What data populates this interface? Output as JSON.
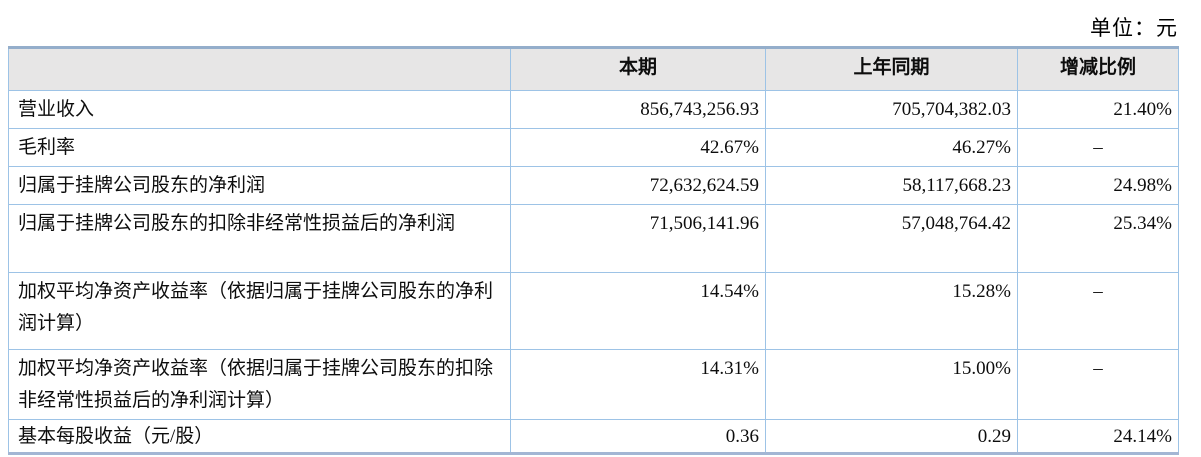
{
  "unit_label": "单位：元",
  "table": {
    "columns": [
      "",
      "本期",
      "上年同期",
      "增减比例"
    ],
    "rows": [
      {
        "label": "营业收入",
        "current": "856,743,256.93",
        "prior": "705,704,382.03",
        "change": "21.40%"
      },
      {
        "label": "毛利率",
        "current": "42.67%",
        "prior": "46.27%",
        "change": "–"
      },
      {
        "label": "归属于挂牌公司股东的净利润",
        "current": "72,632,624.59",
        "prior": "58,117,668.23",
        "change": "24.98%"
      },
      {
        "label": "归属于挂牌公司股东的扣除非经常性损益后的净利润",
        "current": "71,506,141.96",
        "prior": "57,048,764.42",
        "change": "25.34%"
      },
      {
        "label": "加权平均净资产收益率（依据归属于挂牌公司股东的净利润计算）",
        "current": "14.54%",
        "prior": "15.28%",
        "change": "–"
      },
      {
        "label": "加权平均净资产收益率（依据归属于挂牌公司股东的扣除非经常性损益后的净利润计算）",
        "current": "14.31%",
        "prior": "15.00%",
        "change": "–"
      },
      {
        "label": "基本每股收益（元/股）",
        "current": "0.36",
        "prior": "0.29",
        "change": "24.14%"
      }
    ]
  },
  "colors": {
    "border_thin": "#9dc3e6",
    "border_thick": "#94aecb",
    "header_fill": "#e7e6e6",
    "text": "#0d0d0d"
  }
}
